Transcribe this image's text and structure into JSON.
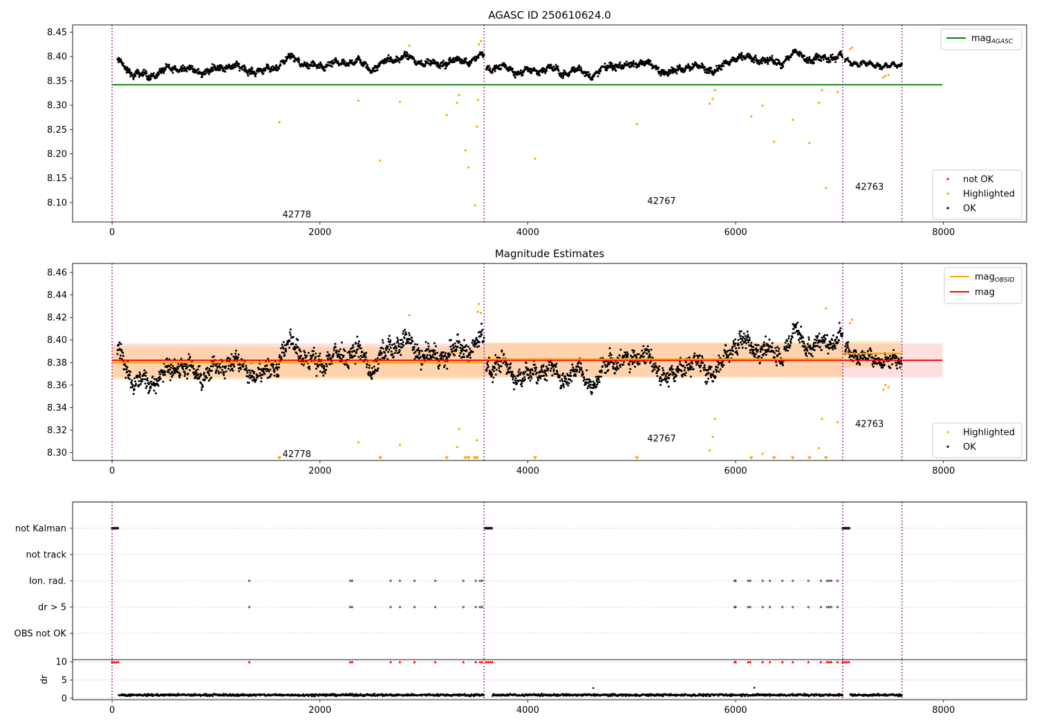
{
  "chart_data": [
    {
      "type": "scatter",
      "title": "AGASC ID 250610624.0",
      "xlim": [
        -380,
        8800
      ],
      "ylim": [
        8.06,
        8.465
      ],
      "xticks": [
        0,
        2000,
        4000,
        6000,
        8000
      ],
      "xtick_labels": [
        "0",
        "2000",
        "4000",
        "6000",
        "8000"
      ],
      "yticks": [
        8.1,
        8.15,
        8.2,
        8.25,
        8.3,
        8.35,
        8.4,
        8.45
      ],
      "ytick_labels": [
        "8.10",
        "8.15",
        "8.20",
        "8.25",
        "8.30",
        "8.35",
        "8.40",
        "8.45"
      ],
      "obsid_boundaries": [
        0,
        3580,
        7030,
        7600
      ],
      "obsid_labels": [
        {
          "text": "42778",
          "x": 1640,
          "y": 8.076
        },
        {
          "text": "42767",
          "x": 5150,
          "y": 8.104
        },
        {
          "text": "42763",
          "x": 7150,
          "y": 8.133
        }
      ],
      "mag_agasc": 8.342,
      "mag_agasc_range": [
        0,
        7990
      ],
      "ok_points": {
        "color": "#000000",
        "segments": [
          {
            "x_start": 50,
            "x_end": 3580,
            "base": [
              8.392,
              8.364,
              8.36,
              8.372,
              8.378,
              8.368,
              8.372,
              8.382,
              8.374,
              8.368,
              8.38,
              8.4,
              8.378,
              8.382,
              8.386,
              8.39,
              8.374,
              8.392,
              8.4,
              8.388,
              8.384,
              8.39,
              8.392,
              8.402
            ],
            "spread": 0.009
          },
          {
            "x_start": 3600,
            "x_end": 7030,
            "base": [
              8.376,
              8.378,
              8.368,
              8.37,
              8.376,
              8.366,
              8.372,
              8.36,
              8.384,
              8.378,
              8.39,
              8.375,
              8.366,
              8.382,
              8.376,
              8.372,
              8.398,
              8.396,
              8.392,
              8.386,
              8.408,
              8.392,
              8.398,
              8.4
            ],
            "spread": 0.009
          },
          {
            "x_start": 7050,
            "x_end": 7600,
            "base": [
              8.39,
              8.388,
              8.382,
              8.384,
              8.378,
              8.384
            ],
            "spread": 0.006
          }
        ]
      },
      "highlighted_points": {
        "color": "#ffa500",
        "x": [
          1610,
          2370,
          2580,
          2770,
          2860,
          3220,
          3320,
          3340,
          3400,
          3430,
          3490,
          3510,
          3520,
          3530,
          3550,
          5050,
          4070,
          5750,
          5780,
          5800,
          6150,
          6260,
          6370,
          6550,
          6710,
          6800,
          6830,
          6870,
          6980,
          7100,
          7120,
          7420,
          7440,
          7470
        ],
        "y": [
          8.265,
          8.309,
          8.186,
          8.307,
          8.422,
          8.28,
          8.305,
          8.321,
          8.207,
          8.172,
          8.094,
          8.256,
          8.311,
          8.425,
          8.432,
          8.261,
          8.19,
          8.303,
          8.313,
          8.331,
          8.277,
          8.299,
          8.225,
          8.27,
          8.222,
          8.305,
          8.331,
          8.13,
          8.327,
          8.415,
          8.418,
          8.357,
          8.36,
          8.362
        ]
      },
      "legend": {
        "top_right": [
          {
            "label": "mag",
            "sub": "AGASC",
            "color": "#008000",
            "kind": "line"
          }
        ],
        "bottom_right": [
          {
            "label": "not OK",
            "color": "#ff0000",
            "kind": "dot"
          },
          {
            "label": "Highlighted",
            "color": "#ffa500",
            "kind": "dot"
          },
          {
            "label": "OK",
            "color": "#000000",
            "kind": "dot"
          }
        ]
      }
    },
    {
      "type": "scatter",
      "title": "Magnitude Estimates",
      "xlim": [
        -380,
        8800
      ],
      "ylim": [
        8.293,
        8.468
      ],
      "xticks": [
        0,
        2000,
        4000,
        6000,
        8000
      ],
      "xtick_labels": [
        "0",
        "2000",
        "4000",
        "6000",
        "8000"
      ],
      "yticks": [
        8.3,
        8.32,
        8.34,
        8.36,
        8.38,
        8.4,
        8.42,
        8.44,
        8.46
      ],
      "ytick_labels": [
        "8.30",
        "8.32",
        "8.34",
        "8.36",
        "8.38",
        "8.40",
        "8.42",
        "8.44",
        "8.46"
      ],
      "obsid_boundaries": [
        0,
        3580,
        7030,
        7600
      ],
      "obsid_labels": [
        {
          "text": "42778",
          "x": 1640,
          "y": 8.299
        },
        {
          "text": "42767",
          "x": 5150,
          "y": 8.313
        },
        {
          "text": "42763",
          "x": 7150,
          "y": 8.326
        }
      ],
      "mag": 8.382,
      "mag_band": [
        8.367,
        8.397
      ],
      "mag_range": [
        0,
        7990
      ],
      "mag_obsid": [
        {
          "x": [
            0,
            3580
          ],
          "value": 8.38,
          "band": [
            8.365,
            8.394
          ]
        },
        {
          "x": [
            3580,
            7030
          ],
          "value": 8.383,
          "band": [
            8.367,
            8.398
          ]
        },
        {
          "x": [
            7030,
            7600
          ],
          "value": 8.388,
          "band": [
            8.376,
            8.399
          ]
        }
      ],
      "ok_points": {
        "color": "#000000",
        "segments": [
          {
            "x_start": 50,
            "x_end": 3580,
            "base": [
              8.392,
              8.364,
              8.36,
              8.372,
              8.378,
              8.368,
              8.372,
              8.382,
              8.374,
              8.368,
              8.38,
              8.4,
              8.378,
              8.382,
              8.386,
              8.39,
              8.374,
              8.392,
              8.4,
              8.388,
              8.384,
              8.39,
              8.392,
              8.402
            ],
            "spread": 0.012
          },
          {
            "x_start": 3600,
            "x_end": 7030,
            "base": [
              8.376,
              8.378,
              8.368,
              8.37,
              8.376,
              8.366,
              8.372,
              8.36,
              8.384,
              8.378,
              8.39,
              8.375,
              8.366,
              8.382,
              8.376,
              8.372,
              8.398,
              8.396,
              8.392,
              8.386,
              8.408,
              8.392,
              8.398,
              8.4
            ],
            "spread": 0.012
          },
          {
            "x_start": 7050,
            "x_end": 7600,
            "base": [
              8.39,
              8.388,
              8.382,
              8.384,
              8.378,
              8.384
            ],
            "spread": 0.008
          }
        ]
      },
      "highlighted_points": {
        "color": "#ffa500",
        "x": [
          2370,
          2770,
          2860,
          3320,
          3340,
          3510,
          3520,
          3530,
          3550,
          5750,
          5780,
          5800,
          6260,
          6800,
          6830,
          6870,
          6980,
          7100,
          7120,
          7420,
          7440,
          7470
        ],
        "y": [
          8.309,
          8.307,
          8.422,
          8.305,
          8.321,
          8.311,
          8.425,
          8.432,
          8.424,
          8.302,
          8.314,
          8.33,
          8.299,
          8.304,
          8.33,
          8.428,
          8.327,
          8.415,
          8.418,
          8.356,
          8.36,
          8.358
        ]
      },
      "below_axis_markers": {
        "color": "#ffa500",
        "x": [
          1610,
          2580,
          3220,
          3400,
          3430,
          3490,
          3510,
          4070,
          5050,
          6150,
          6370,
          6550,
          6710,
          6870
        ]
      },
      "legend": {
        "top_right": [
          {
            "label": "mag",
            "sub": "OBSID",
            "color": "#ffa500",
            "kind": "line"
          },
          {
            "label": "mag",
            "color": "#ff0000",
            "kind": "line"
          }
        ],
        "bottom_right": [
          {
            "label": "Highlighted",
            "color": "#ffa500",
            "kind": "dot"
          },
          {
            "label": "OK",
            "color": "#000000",
            "kind": "dot"
          }
        ]
      }
    },
    {
      "type": "scatter",
      "title": "",
      "xlim": [
        -380,
        8800
      ],
      "categories": [
        "not Kalman",
        "not track",
        "Ion. rad.",
        "dr > 5",
        "OBS not OK"
      ],
      "obsid_boundaries": [
        0,
        3580,
        7030,
        7600
      ],
      "flags": {
        "not Kalman": [
          [
            0,
            60
          ],
          [
            3590,
            3660
          ],
          [
            7030,
            7100
          ]
        ],
        "not track": [],
        "Ion. rad.": [
          1320,
          2290,
          2310,
          2680,
          2770,
          2910,
          3110,
          3380,
          3500,
          3540,
          3560,
          5990,
          6000,
          6120,
          6140,
          6260,
          6330,
          6450,
          6550,
          6700,
          6820,
          6880,
          6900,
          6920,
          6980
        ],
        "dr > 5": [
          1320,
          2290,
          2310,
          2680,
          2770,
          2910,
          3110,
          3380,
          3500,
          3540,
          3560,
          5990,
          6000,
          6120,
          6140,
          6260,
          6330,
          6450,
          6550,
          6700,
          6820,
          6880,
          6900,
          6920,
          6980
        ],
        "OBS not OK": []
      }
    },
    {
      "type": "scatter",
      "title": "",
      "ylabel": "dr",
      "xlim": [
        -380,
        8800
      ],
      "ylim": [
        -0.4,
        10.6
      ],
      "xticks": [
        0,
        2000,
        4000,
        6000,
        8000
      ],
      "xtick_labels": [
        "0",
        "2000",
        "4000",
        "6000",
        "8000"
      ],
      "yticks": [
        0,
        5,
        10
      ],
      "ytick_labels": [
        "0",
        "5",
        "10"
      ],
      "obsid_boundaries": [
        0,
        3580,
        7030,
        7600
      ],
      "dr_points": {
        "color": "#000000",
        "typical": 0.9,
        "spread": 0.45
      },
      "clipped_points": {
        "color": "#ff0000",
        "value": 10,
        "x": [
          0,
          20,
          40,
          60,
          1320,
          2290,
          2310,
          2680,
          2770,
          2910,
          3110,
          3380,
          3500,
          3540,
          3560,
          3600,
          3620,
          3640,
          3660,
          5990,
          6000,
          6120,
          6140,
          6260,
          6330,
          6450,
          6550,
          6700,
          6820,
          6880,
          6900,
          6920,
          6980,
          7030,
          7050,
          7070,
          7090
        ]
      },
      "outliers": {
        "x": [
          4630,
          6180
        ],
        "y": [
          2.8,
          2.9
        ]
      }
    }
  ]
}
